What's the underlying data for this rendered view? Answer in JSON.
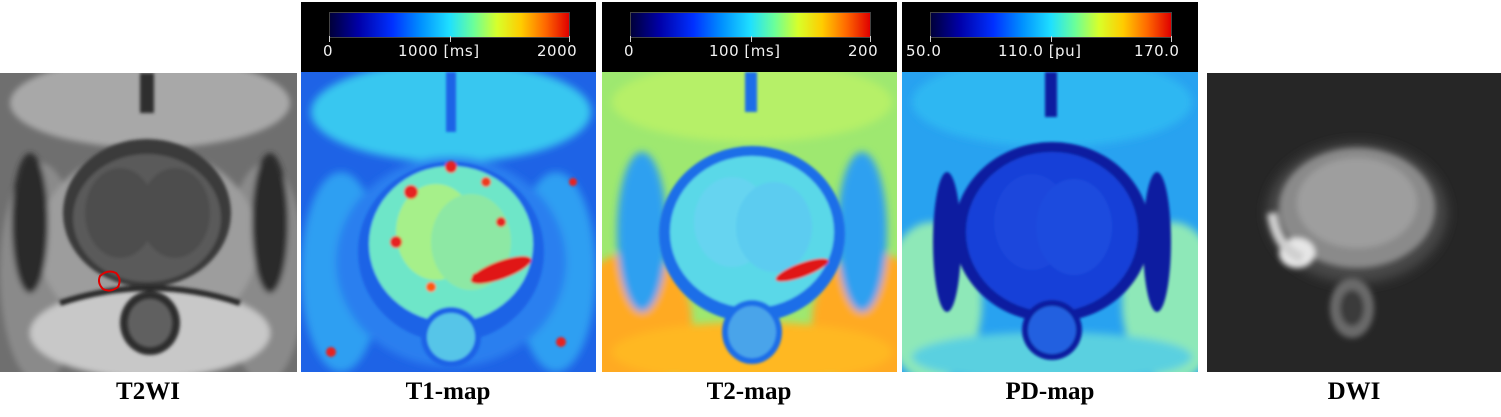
{
  "panels": {
    "t2wi": {
      "caption": "T2WI"
    },
    "t1map": {
      "caption": "T1-map",
      "colorbar": {
        "min_label": "0",
        "mid_label": "1000 [ms]",
        "max_label": "2000"
      }
    },
    "t2map": {
      "caption": "T2-map",
      "colorbar": {
        "min_label": "0",
        "mid_label": "100 [ms]",
        "max_label": "200"
      }
    },
    "pdmap": {
      "caption": "PD-map",
      "colorbar": {
        "min_label": "50.0",
        "mid_label": "110.0 [pu]",
        "max_label": "170.0"
      }
    },
    "dwi": {
      "caption": "DWI"
    }
  },
  "colors": {
    "lesion_outline": "#e00000",
    "colormap": [
      "#00003a",
      "#0000a8",
      "#0030ff",
      "#0090ff",
      "#1fe0ff",
      "#6aff9a",
      "#d8ff2a",
      "#ffcc00",
      "#ff6a00",
      "#e00000"
    ]
  }
}
